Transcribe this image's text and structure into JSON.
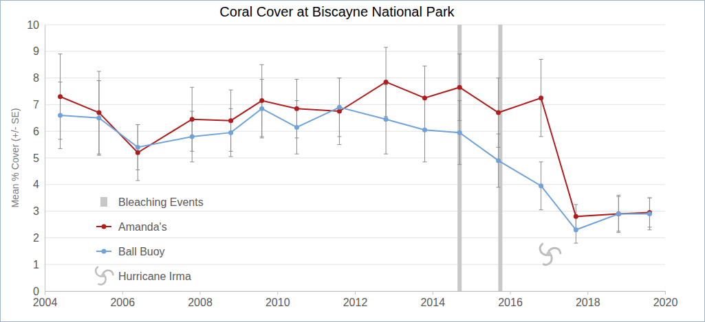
{
  "chart_data": {
    "type": "line",
    "title": "Coral Cover at Biscayne National Park",
    "y_label": "Mean % Cover (+/- SE)",
    "x": [
      2004.4,
      2005.4,
      2006.4,
      2007.8,
      2008.8,
      2009.6,
      2010.5,
      2011.6,
      2012.8,
      2013.8,
      2014.7,
      2015.7,
      2016.8,
      2017.7,
      2018.8,
      2019.6
    ],
    "series": [
      {
        "name": "Amanda's",
        "color": "#b01c1c",
        "marker": "circle",
        "line_style": "solid",
        "values": [
          7.3,
          6.7,
          5.2,
          6.45,
          6.4,
          7.15,
          6.85,
          6.75,
          7.85,
          7.25,
          7.65,
          6.7,
          7.25,
          2.8,
          2.9,
          2.95
        ],
        "errors": [
          1.6,
          1.55,
          1.05,
          1.2,
          1.15,
          1.35,
          1.1,
          1.25,
          1.3,
          1.2,
          1.25,
          1.3,
          1.45,
          0.45,
          0.7,
          0.55
        ]
      },
      {
        "name": "Ball Buoy",
        "color": "#6fa2d9",
        "marker": "circle",
        "line_style": "solid",
        "values": [
          6.6,
          6.5,
          5.4,
          5.8,
          5.95,
          6.85,
          6.15,
          6.9,
          6.45,
          6.05,
          5.95,
          4.9,
          3.95,
          2.3,
          2.9,
          2.9
        ],
        "errors": [
          1.25,
          1.4,
          0.85,
          0.95,
          0.9,
          1.1,
          1.0,
          1.1,
          1.3,
          1.2,
          1.2,
          1.0,
          0.9,
          0.5,
          0.65,
          0.6
        ]
      }
    ],
    "bleaching_events": {
      "name": "Bleaching Events",
      "x": [
        2014.7,
        2015.75
      ],
      "color": "#c8c8c8"
    },
    "hurricane": {
      "name": "Hurricane Irma",
      "x": 2017.0,
      "y": 1.4
    },
    "xlim": [
      2004,
      2020
    ],
    "xticks": [
      2004,
      2006,
      2008,
      2010,
      2012,
      2014,
      2016,
      2018,
      2020
    ],
    "ylim": [
      0,
      10
    ],
    "yticks": [
      0,
      1,
      2,
      3,
      4,
      5,
      6,
      7,
      8,
      9,
      10
    ],
    "grid": true,
    "legend": "bottom-left"
  }
}
